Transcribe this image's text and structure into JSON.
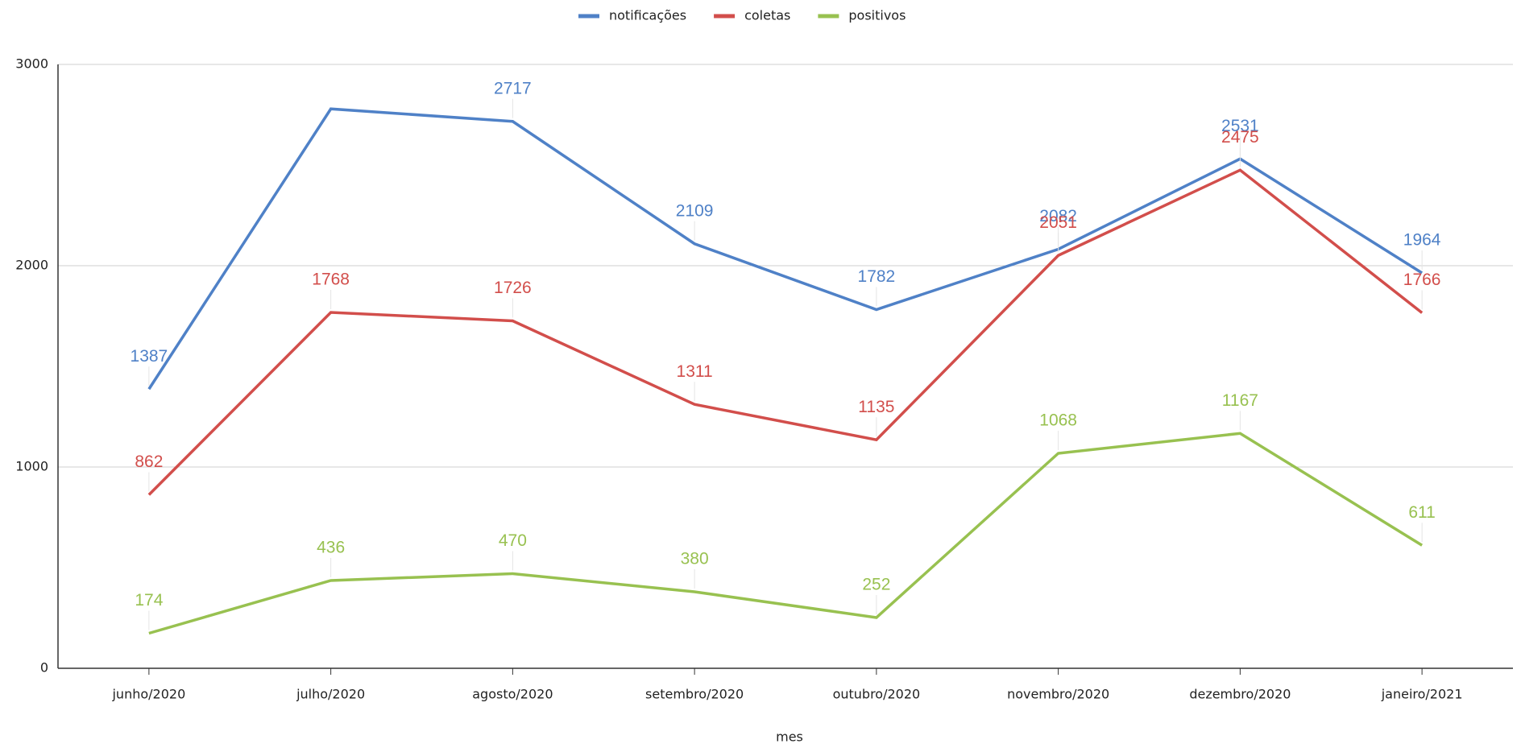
{
  "chart_data": {
    "type": "line",
    "x_label": "mes",
    "categories": [
      "junho/2020",
      "julho/2020",
      "agosto/2020",
      "setembro/2020",
      "outubro/2020",
      "novembro/2020",
      "dezembro/2020",
      "janeiro/2021"
    ],
    "series": [
      {
        "name": "notificações",
        "color": "#4f81c7",
        "values": [
          1387,
          2779,
          2717,
          2109,
          1782,
          2082,
          2531,
          1964
        ],
        "value_labels": [
          "1387",
          null,
          "2717",
          "2109",
          "1782",
          "2082",
          "2531",
          "1964"
        ]
      },
      {
        "name": "coletas",
        "color": "#d24e4b",
        "values": [
          862,
          1768,
          1726,
          1311,
          1135,
          2051,
          2475,
          1766
        ]
      },
      {
        "name": "positivos",
        "color": "#98c150",
        "values": [
          174,
          436,
          470,
          380,
          252,
          1068,
          1167,
          611
        ]
      }
    ],
    "ylim": [
      0,
      3000
    ],
    "yticks": [
      0,
      1000,
      2000,
      3000
    ],
    "grid": true,
    "legend": "top"
  }
}
